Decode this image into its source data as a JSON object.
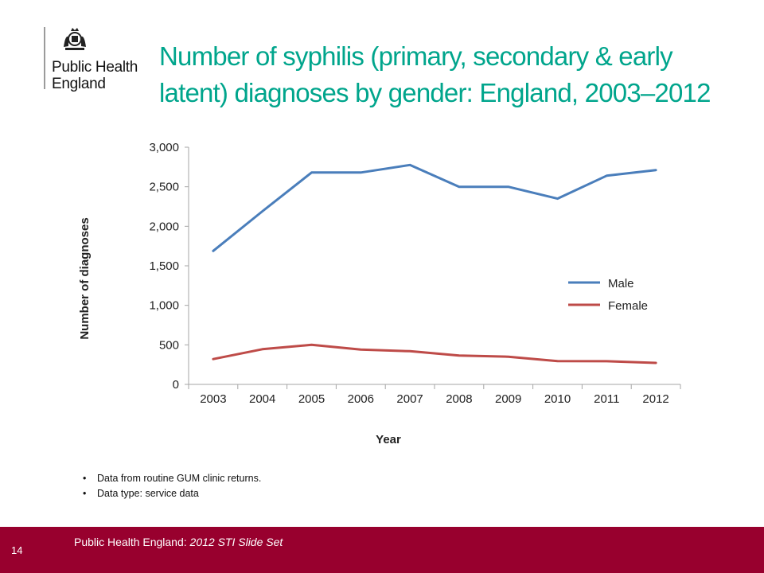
{
  "header": {
    "org_line1": "Public Health",
    "org_line2": "England",
    "crest_icon": "royal-crest-icon",
    "title_line1": "Number of syphilis (primary, secondary & early",
    "title_line2": "latent) diagnoses by gender: England, 2003–2012",
    "title_color": "#00a58c"
  },
  "chart_data": {
    "type": "line",
    "x": [
      "2003",
      "2004",
      "2005",
      "2006",
      "2007",
      "2008",
      "2009",
      "2010",
      "2011",
      "2012"
    ],
    "series": [
      {
        "name": "Male",
        "color": "#4a7ebb",
        "values": [
          1688,
          2190,
          2680,
          2680,
          2775,
          2500,
          2500,
          2350,
          2640,
          2710
        ]
      },
      {
        "name": "Female",
        "color": "#be4b48",
        "values": [
          320,
          445,
          500,
          440,
          420,
          365,
          350,
          295,
          293,
          272
        ]
      }
    ],
    "yticks": [
      "0",
      "500",
      "1,000",
      "1,500",
      "2,000",
      "2,500",
      "3,000"
    ],
    "ylim": [
      0,
      3000
    ],
    "xlabel": "Year",
    "ylabel": "Number of diagnoses",
    "legend": "right-center",
    "grid": false
  },
  "notes": [
    "Data from routine GUM clinic returns.",
    "Data type: service data"
  ],
  "footer": {
    "slide_number": "14",
    "source_prefix": "Public Health England: ",
    "source_italic": "2012 STI Slide Set",
    "background": "#98002e"
  }
}
